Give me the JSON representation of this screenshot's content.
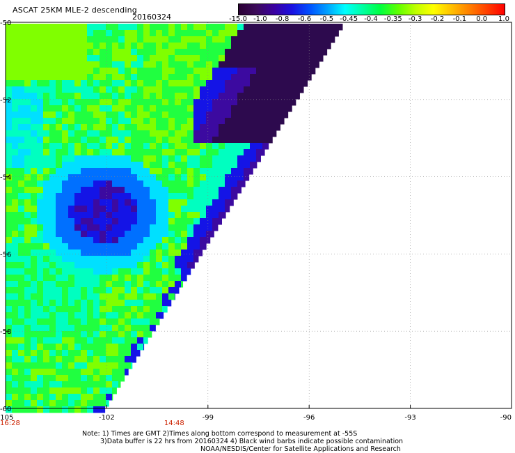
{
  "header": {
    "title": "ASCAT 25KM MLE-2 descending",
    "date": "20160324"
  },
  "colorbar": {
    "labels": [
      "-15.0",
      "-1.0",
      "-0.8",
      "-0.6",
      "-0.5",
      "-0.45",
      "-0.4",
      "-0.35",
      "-0.3",
      "-0.2",
      "-0.1",
      "0.0",
      "1.0"
    ],
    "colors": [
      "#2a0033",
      "#3c0a5a",
      "#3a00a0",
      "#1a10e0",
      "#0050ff",
      "#00a0ff",
      "#00ffff",
      "#00ffa0",
      "#00ff40",
      "#60ff00",
      "#c0ff00",
      "#ffff00",
      "#ffc000",
      "#ff8000",
      "#ff4000",
      "#ff0000"
    ]
  },
  "axes": {
    "lon_labels": [
      "-105",
      "-102",
      "-99",
      "-96",
      "-93",
      "-90"
    ],
    "lat_labels": [
      "-50",
      "-52",
      "-54",
      "-56",
      "-58",
      "-60"
    ],
    "time_labels": [
      "16:28",
      "14:48"
    ]
  },
  "notes": {
    "line1": "Note: 1) Times are GMT 2)Times along bottom correspond to measurement at -55S",
    "line2": "3)Data buffer is 22 hrs from 20160324 4) Black wind barbs indicate possible contamination",
    "line3": "NOAA/NESDIS/Center for Satellite Applications and Research"
  },
  "palette": {
    "plot_background": "#ffffff",
    "tick_color": "#000000",
    "time_color": "#cc2200"
  }
}
